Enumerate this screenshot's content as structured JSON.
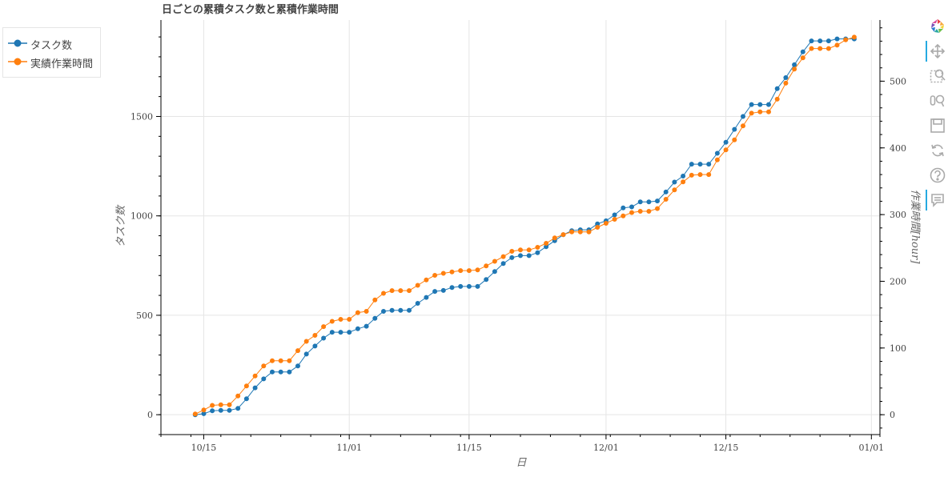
{
  "chart_data": {
    "type": "line",
    "title": "日ごとの累積タスク数と累積作業時間",
    "xlabel": "日",
    "ylabel": "タスク数",
    "y2label": "作業時間[hour]",
    "x_ticks": [
      "10/15",
      "11/01",
      "11/15",
      "12/01",
      "12/15",
      "01/01"
    ],
    "y_ticks": [
      "0",
      "500",
      "1000",
      "1500"
    ],
    "y2_ticks": [
      "0",
      "100",
      "200",
      "300",
      "400",
      "500"
    ],
    "grid": true,
    "legend_position": "outside-top-left",
    "ylim": [
      -100,
      1985
    ],
    "y2lim": [
      -29.8,
      591.7
    ],
    "xlim": [
      "2024-10-10",
      "2025-01-02"
    ],
    "x": [
      "2024-10-14",
      "2024-10-15",
      "2024-10-16",
      "2024-10-17",
      "2024-10-18",
      "2024-10-19",
      "2024-10-20",
      "2024-10-21",
      "2024-10-22",
      "2024-10-23",
      "2024-10-24",
      "2024-10-25",
      "2024-10-26",
      "2024-10-27",
      "2024-10-28",
      "2024-10-29",
      "2024-10-30",
      "2024-10-31",
      "2024-11-01",
      "2024-11-02",
      "2024-11-03",
      "2024-11-04",
      "2024-11-05",
      "2024-11-06",
      "2024-11-07",
      "2024-11-08",
      "2024-11-09",
      "2024-11-10",
      "2024-11-11",
      "2024-11-12",
      "2024-11-13",
      "2024-11-14",
      "2024-11-15",
      "2024-11-16",
      "2024-11-17",
      "2024-11-18",
      "2024-11-19",
      "2024-11-20",
      "2024-11-21",
      "2024-11-22",
      "2024-11-23",
      "2024-11-24",
      "2024-11-25",
      "2024-11-26",
      "2024-11-27",
      "2024-11-28",
      "2024-11-29",
      "2024-11-30",
      "2024-12-01",
      "2024-12-02",
      "2024-12-03",
      "2024-12-04",
      "2024-12-05",
      "2024-12-06",
      "2024-12-07",
      "2024-12-08",
      "2024-12-09",
      "2024-12-10",
      "2024-12-11",
      "2024-12-12",
      "2024-12-13",
      "2024-12-14",
      "2024-12-15",
      "2024-12-16",
      "2024-12-17",
      "2024-12-18",
      "2024-12-19",
      "2024-12-20",
      "2024-12-21",
      "2024-12-22",
      "2024-12-23",
      "2024-12-24",
      "2024-12-25",
      "2024-12-26",
      "2024-12-27",
      "2024-12-28",
      "2024-12-29",
      "2024-12-30"
    ],
    "series": [
      {
        "name": "タスク数",
        "axis": "left",
        "color": "#1f77b4",
        "values": [
          0,
          5,
          20,
          22,
          22,
          32,
          80,
          135,
          180,
          215,
          215,
          215,
          245,
          305,
          345,
          385,
          415,
          415,
          415,
          432,
          445,
          485,
          520,
          525,
          525,
          525,
          560,
          590,
          620,
          625,
          640,
          645,
          645,
          645,
          680,
          720,
          760,
          790,
          800,
          800,
          815,
          845,
          875,
          905,
          925,
          930,
          930,
          960,
          975,
          1005,
          1040,
          1045,
          1070,
          1070,
          1075,
          1120,
          1170,
          1200,
          1260,
          1260,
          1260,
          1315,
          1370,
          1435,
          1500,
          1560,
          1560,
          1560,
          1640,
          1695,
          1760,
          1825,
          1880,
          1880,
          1880,
          1890,
          1890,
          1890
        ]
      },
      {
        "name": "実績作業時間",
        "axis": "right",
        "color": "#ff7f0e",
        "values": [
          1,
          7,
          14,
          15,
          15,
          28,
          43,
          58,
          73,
          81,
          81,
          81,
          96,
          110,
          119,
          132,
          140,
          143,
          143,
          153,
          155,
          172,
          182,
          186,
          186,
          186,
          194,
          202,
          209,
          212,
          214,
          216,
          216,
          217,
          223,
          230,
          237,
          245,
          247,
          247,
          251,
          257,
          265,
          270,
          274,
          274,
          274,
          281,
          287,
          293,
          298,
          303,
          305,
          305,
          309,
          323,
          337,
          349,
          359,
          360,
          360,
          382,
          397,
          412,
          433,
          452,
          454,
          454,
          473,
          497,
          518,
          535,
          549,
          549,
          549,
          554,
          562,
          566
        ]
      }
    ]
  },
  "toolbar": {
    "items": [
      "bokeh-logo",
      "pan-tool",
      "box-zoom-tool",
      "wheel-zoom-tool",
      "save-tool",
      "reset-tool",
      "help-tool",
      "hover-tool"
    ],
    "active": [
      "pan-tool",
      "hover-tool"
    ]
  }
}
